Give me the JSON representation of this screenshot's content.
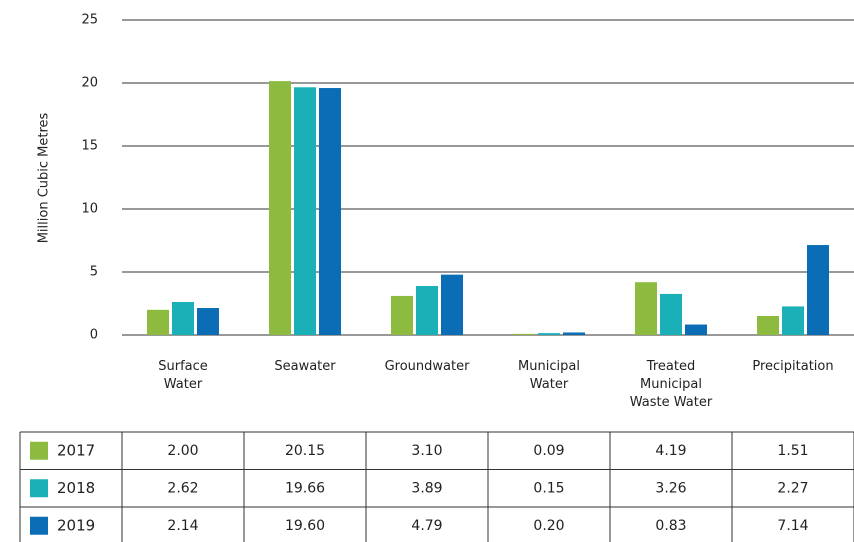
{
  "chart_data": {
    "type": "bar",
    "y_label": "Million Cubic Metres",
    "categories": [
      "Surface\nWater",
      "Seawater",
      "Groundwater",
      "Municipal\nWater",
      "Treated\nMunicipal\nWaste Water",
      "Precipitation"
    ],
    "series": [
      {
        "name": "2017",
        "color": "#8dbb3f",
        "values": [
          2.0,
          20.15,
          3.1,
          0.09,
          4.19,
          1.51
        ],
        "value_labels": [
          "2.00",
          "20.15",
          "3.10",
          "0.09",
          "4.19",
          "1.51"
        ]
      },
      {
        "name": "2018",
        "color": "#1bb0b8",
        "values": [
          2.62,
          19.66,
          3.89,
          0.15,
          3.26,
          2.27
        ],
        "value_labels": [
          "2.62",
          "19.66",
          "3.89",
          "0.15",
          "3.26",
          "2.27"
        ]
      },
      {
        "name": "2019",
        "color": "#0a6db5",
        "values": [
          2.14,
          19.6,
          4.79,
          0.2,
          0.83,
          7.14
        ],
        "value_labels": [
          "2.14",
          "19.60",
          "4.79",
          "0.20",
          "0.83",
          "7.14"
        ]
      }
    ],
    "ylim": [
      0,
      25
    ],
    "yticks": [
      0,
      5,
      10,
      15,
      20,
      25
    ],
    "grid": true
  }
}
